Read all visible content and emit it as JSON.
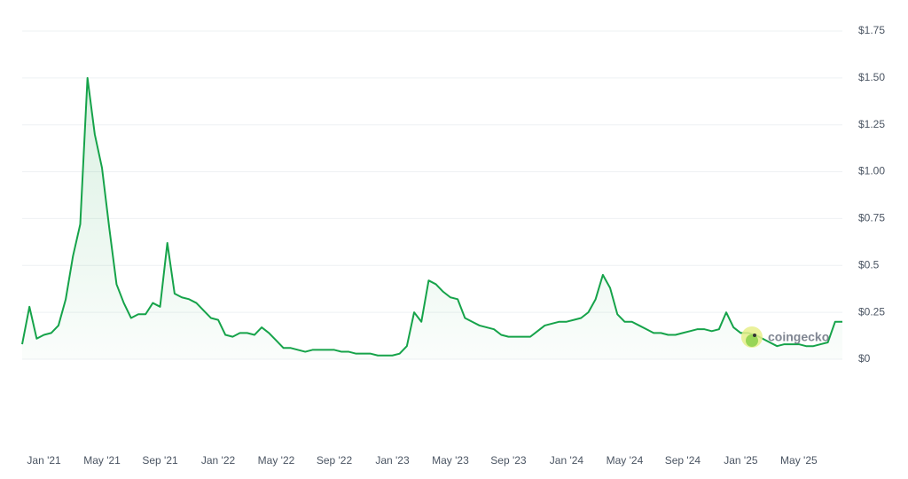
{
  "chart_data": {
    "type": "line",
    "watermark": "coingecko",
    "categories": [
      null,
      null,
      null,
      "Jan '21",
      null,
      null,
      null,
      null,
      null,
      null,
      null,
      "May '21",
      null,
      null,
      null,
      null,
      null,
      null,
      null,
      "Sep '21",
      null,
      null,
      null,
      null,
      null,
      null,
      null,
      "Jan '22",
      null,
      null,
      null,
      null,
      null,
      null,
      null,
      "May '22",
      null,
      null,
      null,
      null,
      null,
      null,
      null,
      "Sep '22",
      null,
      null,
      null,
      null,
      null,
      null,
      null,
      "Jan '23",
      null,
      null,
      null,
      null,
      null,
      null,
      null,
      "May '23",
      null,
      null,
      null,
      null,
      null,
      null,
      null,
      "Sep '23",
      null,
      null,
      null,
      null,
      null,
      null,
      null,
      "Jan '24",
      null,
      null,
      null,
      null,
      null,
      null,
      null,
      "May '24",
      null,
      null,
      null,
      null,
      null,
      null,
      null,
      "Sep '24",
      null,
      null,
      null,
      null,
      null,
      null,
      null,
      "Jan '25",
      null,
      null,
      null,
      null,
      null,
      null,
      null,
      "May '25",
      null,
      null,
      null,
      null,
      null,
      null
    ],
    "series": [
      {
        "color": "#16a34a",
        "values": [
          0.08,
          0.28,
          0.11,
          0.13,
          0.14,
          0.18,
          0.32,
          0.55,
          0.72,
          1.5,
          1.2,
          1.02,
          0.7,
          0.4,
          0.3,
          0.22,
          0.24,
          0.24,
          0.3,
          0.28,
          0.62,
          0.35,
          0.33,
          0.32,
          0.3,
          0.26,
          0.22,
          0.21,
          0.13,
          0.12,
          0.14,
          0.14,
          0.13,
          0.17,
          0.14,
          0.1,
          0.06,
          0.06,
          0.05,
          0.04,
          0.05,
          0.05,
          0.05,
          0.05,
          0.04,
          0.04,
          0.03,
          0.03,
          0.03,
          0.02,
          0.02,
          0.02,
          0.03,
          0.07,
          0.25,
          0.2,
          0.42,
          0.4,
          0.36,
          0.33,
          0.32,
          0.22,
          0.2,
          0.18,
          0.17,
          0.16,
          0.13,
          0.12,
          0.12,
          0.12,
          0.12,
          0.15,
          0.18,
          0.19,
          0.2,
          0.2,
          0.21,
          0.22,
          0.25,
          0.32,
          0.45,
          0.38,
          0.24,
          0.2,
          0.2,
          0.18,
          0.16,
          0.14,
          0.14,
          0.13,
          0.13,
          0.14,
          0.15,
          0.16,
          0.16,
          0.15,
          0.16,
          0.25,
          0.17,
          0.14,
          0.14,
          0.13,
          0.11,
          0.09,
          0.07,
          0.08,
          0.08,
          0.08,
          0.07,
          0.07,
          0.08,
          0.09,
          0.2,
          0.2
        ]
      }
    ],
    "ylim": [
      0,
      1.75
    ],
    "yticks": [
      {
        "value": 0,
        "label": "$0"
      },
      {
        "value": 0.25,
        "label": "$0.25"
      },
      {
        "value": 0.5,
        "label": "$0.5"
      },
      {
        "value": 0.75,
        "label": "$0.75"
      },
      {
        "value": 1,
        "label": "$1.00"
      },
      {
        "value": 1.25,
        "label": "$1.25"
      },
      {
        "value": 1.5,
        "label": "$1.50"
      },
      {
        "value": 1.75,
        "label": "$1.75"
      }
    ],
    "grid": true
  }
}
